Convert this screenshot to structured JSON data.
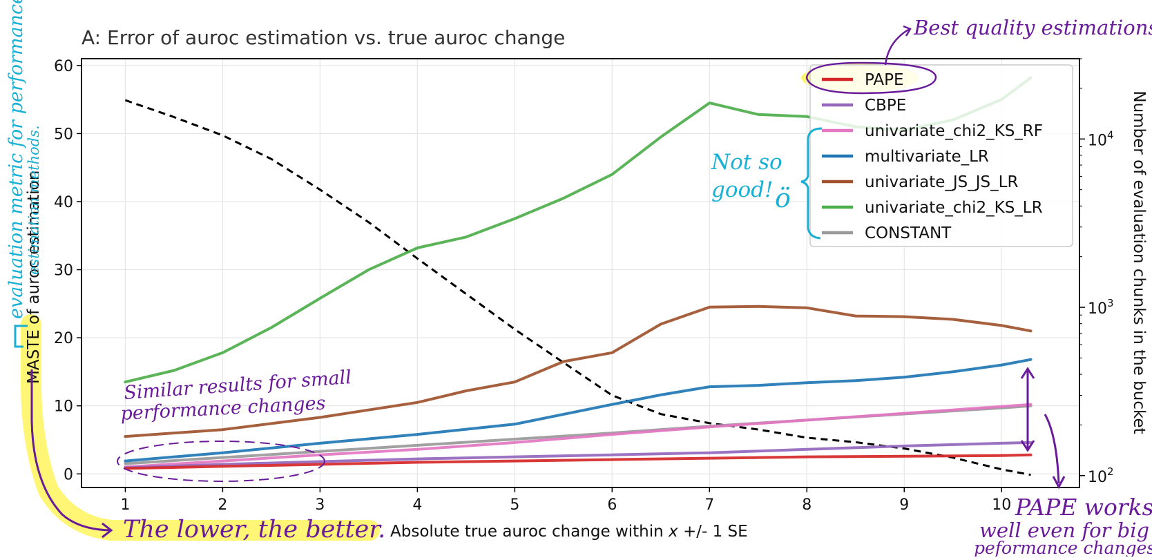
{
  "chart_data": {
    "type": "line",
    "title": "A: Error of auroc estimation vs. true auroc change",
    "xlabel": "Absolute true auroc change within x +/- 1 SE",
    "xlabel_parts": [
      "Absolute true auroc change within ",
      "x",
      " +/- 1 SE"
    ],
    "ylabel_highlight": "MASTE",
    "ylabel_rest": " of auroc estimation",
    "y2label": "Number of evaluation chunks in the bucket",
    "xlim": [
      0.55,
      10.8
    ],
    "ylim": [
      -2,
      61
    ],
    "y2lim": [
      85,
      30000
    ],
    "y2scale": "log",
    "grid": true,
    "legend_position": "top-right",
    "x_ticks": [
      1,
      2,
      3,
      4,
      5,
      6,
      7,
      8,
      9,
      10
    ],
    "y_ticks": [
      0,
      10,
      20,
      30,
      40,
      50,
      60
    ],
    "y2_ticks": [
      {
        "value": 100,
        "base": "10",
        "exp": "2"
      },
      {
        "value": 1000,
        "base": "10",
        "exp": "3"
      },
      {
        "value": 10000,
        "base": "10",
        "exp": "4"
      }
    ],
    "series": [
      {
        "name": "PAPE",
        "color": "#d62728",
        "x": [
          1,
          2,
          3,
          4,
          5,
          6,
          7,
          8,
          9,
          10,
          10.3
        ],
        "y": [
          0.8,
          1.1,
          1.4,
          1.7,
          1.9,
          2.1,
          2.3,
          2.5,
          2.6,
          2.7,
          2.8
        ]
      },
      {
        "name": "CBPE",
        "color": "#9467bd",
        "x": [
          1,
          2,
          3,
          4,
          5,
          6,
          7,
          8,
          9,
          10,
          10.3
        ],
        "y": [
          0.9,
          1.4,
          1.8,
          2.2,
          2.5,
          2.8,
          3.1,
          3.6,
          4.1,
          4.5,
          4.6
        ]
      },
      {
        "name": "univariate_chi2_KS_RF",
        "color": "#e377c2",
        "x": [
          1,
          2,
          3,
          4,
          5,
          6,
          7,
          8,
          9,
          10,
          10.3
        ],
        "y": [
          1.0,
          1.9,
          2.8,
          3.6,
          4.6,
          5.8,
          6.9,
          7.9,
          8.9,
          9.9,
          10.2
        ]
      },
      {
        "name": "multivariate_LR",
        "color": "#1f77b4",
        "x": [
          1,
          2,
          3,
          4,
          5,
          6,
          6.5,
          7,
          7.5,
          8,
          8.5,
          9,
          9.5,
          10,
          10.3
        ],
        "y": [
          1.9,
          3.1,
          4.5,
          5.8,
          7.3,
          10.2,
          11.6,
          12.8,
          13.0,
          13.4,
          13.7,
          14.2,
          15.0,
          16.0,
          16.8
        ]
      },
      {
        "name": "univariate_JS_JS_LR",
        "color": "#a0522d",
        "x": [
          1,
          2,
          3,
          4,
          4.5,
          5,
          5.5,
          6,
          6.5,
          7,
          7.5,
          8,
          8.5,
          9,
          9.5,
          10,
          10.3
        ],
        "y": [
          5.5,
          6.5,
          8.3,
          10.5,
          12.2,
          13.5,
          16.5,
          17.8,
          22.0,
          24.5,
          24.6,
          24.4,
          23.2,
          23.1,
          22.7,
          21.8,
          21.0
        ]
      },
      {
        "name": "univariate_chi2_KS_LR",
        "color": "#4daf4a",
        "x": [
          1,
          1.5,
          2,
          2.5,
          3,
          3.5,
          4,
          4.5,
          5,
          5.5,
          6,
          6.5,
          7,
          7.5,
          8,
          8.5,
          9,
          9.5,
          10,
          10.3
        ],
        "y": [
          13.5,
          15.2,
          17.8,
          21.5,
          25.8,
          30.0,
          33.2,
          34.8,
          37.5,
          40.5,
          44.0,
          49.5,
          54.5,
          52.8,
          52.5,
          51.0,
          50.5,
          52.0,
          55.0,
          58.2
        ]
      },
      {
        "name": "CONSTANT",
        "color": "#999999",
        "x": [
          1,
          2,
          3,
          4,
          5,
          6,
          7,
          8,
          9,
          10,
          10.3
        ],
        "y": [
          1.5,
          2.4,
          3.3,
          4.2,
          5.1,
          6.0,
          7.0,
          7.9,
          8.8,
          9.7,
          10.0
        ]
      }
    ],
    "count_series": {
      "style": "dashed",
      "color": "#000000",
      "x": [
        1,
        1.5,
        2,
        2.5,
        3,
        3.5,
        4,
        4.5,
        5,
        5.5,
        6,
        6.5,
        7,
        7.5,
        8,
        8.5,
        9,
        9.5,
        10,
        10.3
      ],
      "y2": [
        17000,
        13500,
        10500,
        7600,
        5000,
        3200,
        1950,
        1200,
        740,
        470,
        300,
        232,
        205,
        188,
        168,
        158,
        145,
        128,
        109,
        101
      ]
    }
  },
  "annotations": {
    "best_quality": "Best quality estimations",
    "not_so_good": [
      "Not so",
      "good!",
      "ö"
    ],
    "similar_results": [
      "Similar results for small",
      "performance changes"
    ],
    "lower_better": "The lower, the better.",
    "pape_works": [
      "PAPE works",
      "well even for big",
      "peformance changes."
    ],
    "eval_metric": [
      "evaluation metric for performance",
      "estimation methods."
    ]
  },
  "colors": {
    "annotation_purple": "#6a1b9a",
    "annotation_cyan": "#1ab0d4",
    "highlight_yellow": "#fff566",
    "axis": "#000000"
  }
}
